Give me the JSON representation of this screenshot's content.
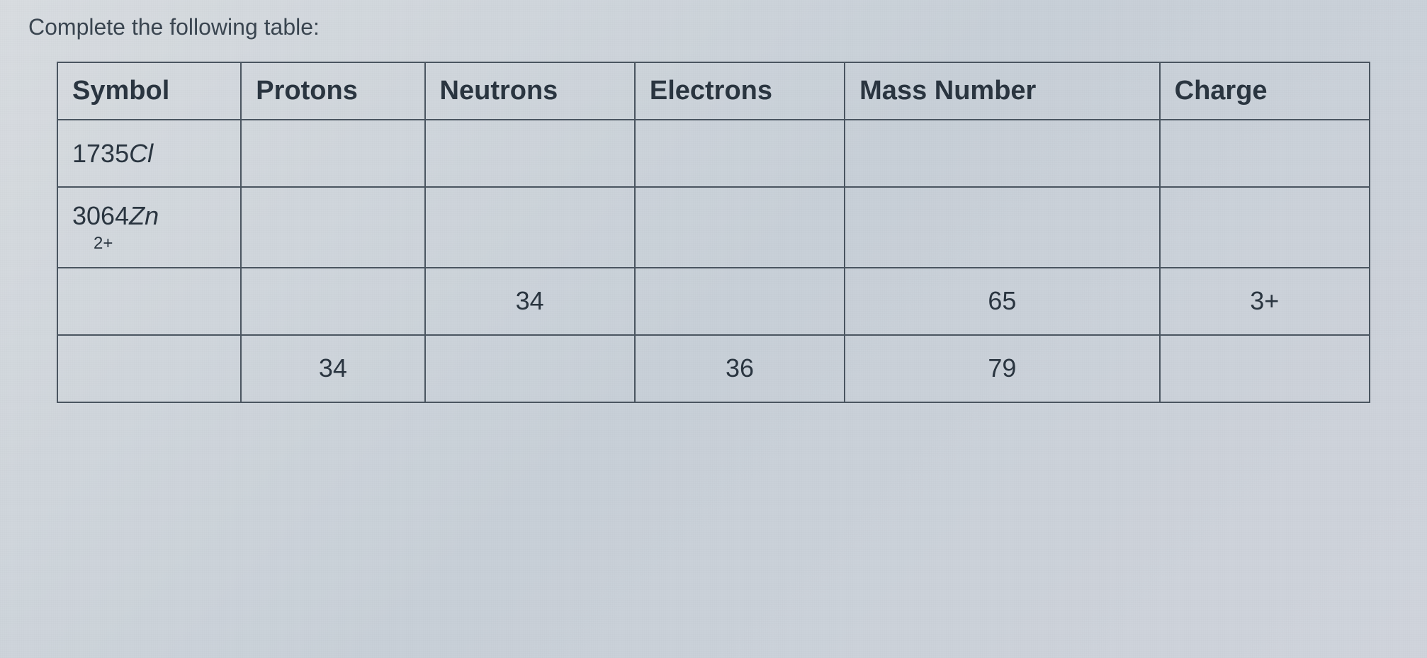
{
  "prompt": "Complete the following table:",
  "table": {
    "columns": [
      "Symbol",
      "Protons",
      "Neutrons",
      "Electrons",
      "Mass Number",
      "Charge"
    ],
    "column_widths_pct": [
      14,
      14,
      16,
      16,
      24,
      16
    ],
    "border_color": "#4a5560",
    "border_width": 2,
    "background_color": "transparent",
    "header_fontsize": 38,
    "cell_fontsize": 36,
    "text_color": "#2a3540",
    "rows": [
      {
        "symbol_prefix": "1735",
        "symbol_element": "Cl",
        "symbol_superscript": "",
        "protons": "",
        "neutrons": "",
        "electrons": "",
        "mass_number": "",
        "charge": ""
      },
      {
        "symbol_prefix": "3064",
        "symbol_element": "Zn",
        "symbol_superscript": "2+",
        "protons": "",
        "neutrons": "",
        "electrons": "",
        "mass_number": "",
        "charge": ""
      },
      {
        "symbol_prefix": "",
        "symbol_element": "",
        "symbol_superscript": "",
        "protons": "",
        "neutrons": "34",
        "electrons": "",
        "mass_number": "65",
        "charge": "3+"
      },
      {
        "symbol_prefix": "",
        "symbol_element": "",
        "symbol_superscript": "",
        "protons": "34",
        "neutrons": "",
        "electrons": "36",
        "mass_number": "79",
        "charge": ""
      }
    ]
  },
  "page_background": "#d8dce0"
}
